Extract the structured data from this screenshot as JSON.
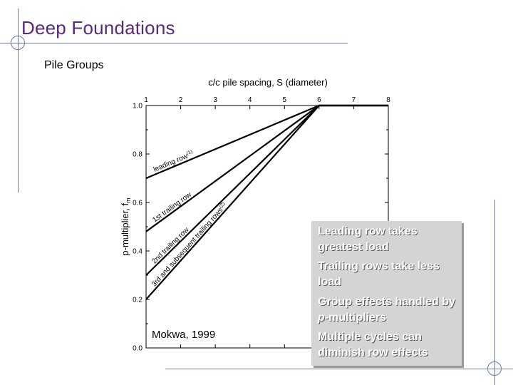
{
  "slide": {
    "title": "Deep Foundations",
    "subtitle": "Pile Groups"
  },
  "chart_data": {
    "type": "line",
    "title": "",
    "xlabel": "c/c pile spacing, S (diameter)",
    "ylabel": "p-multiplier, f",
    "ylabel_subscript": "m",
    "xlim": [
      1,
      8
    ],
    "ylim": [
      0,
      1.0
    ],
    "x_ticks": [
      "1",
      "2",
      "3",
      "4",
      "5",
      "6",
      "7",
      "8"
    ],
    "y_ticks": [
      "0.0",
      "0.2",
      "0.4",
      "0.6",
      "0.8",
      "1.0"
    ],
    "grid": false,
    "series": [
      {
        "name": "leading row",
        "superscript": "(1)",
        "x": [
          1,
          6,
          8
        ],
        "y": [
          0.7,
          1.0,
          1.0
        ]
      },
      {
        "name": "1st trailing row",
        "superscript": "",
        "x": [
          1,
          6,
          8
        ],
        "y": [
          0.48,
          1.0,
          1.0
        ]
      },
      {
        "name": "2nd trailing row",
        "superscript": "",
        "x": [
          1,
          6,
          8
        ],
        "y": [
          0.3,
          1.0,
          1.0
        ]
      },
      {
        "name": "3rd and subsequent trailing rows",
        "superscript": "(2)",
        "x": [
          1,
          6,
          8
        ],
        "y": [
          0.2,
          1.0,
          1.0
        ]
      }
    ],
    "source": "Mokwa, 1999"
  },
  "bullets": [
    "Leading row takes greatest load",
    "Trailing rows take less load",
    "Group effects handled by p-multipliers",
    "Multiple cycles can diminish row effects"
  ]
}
